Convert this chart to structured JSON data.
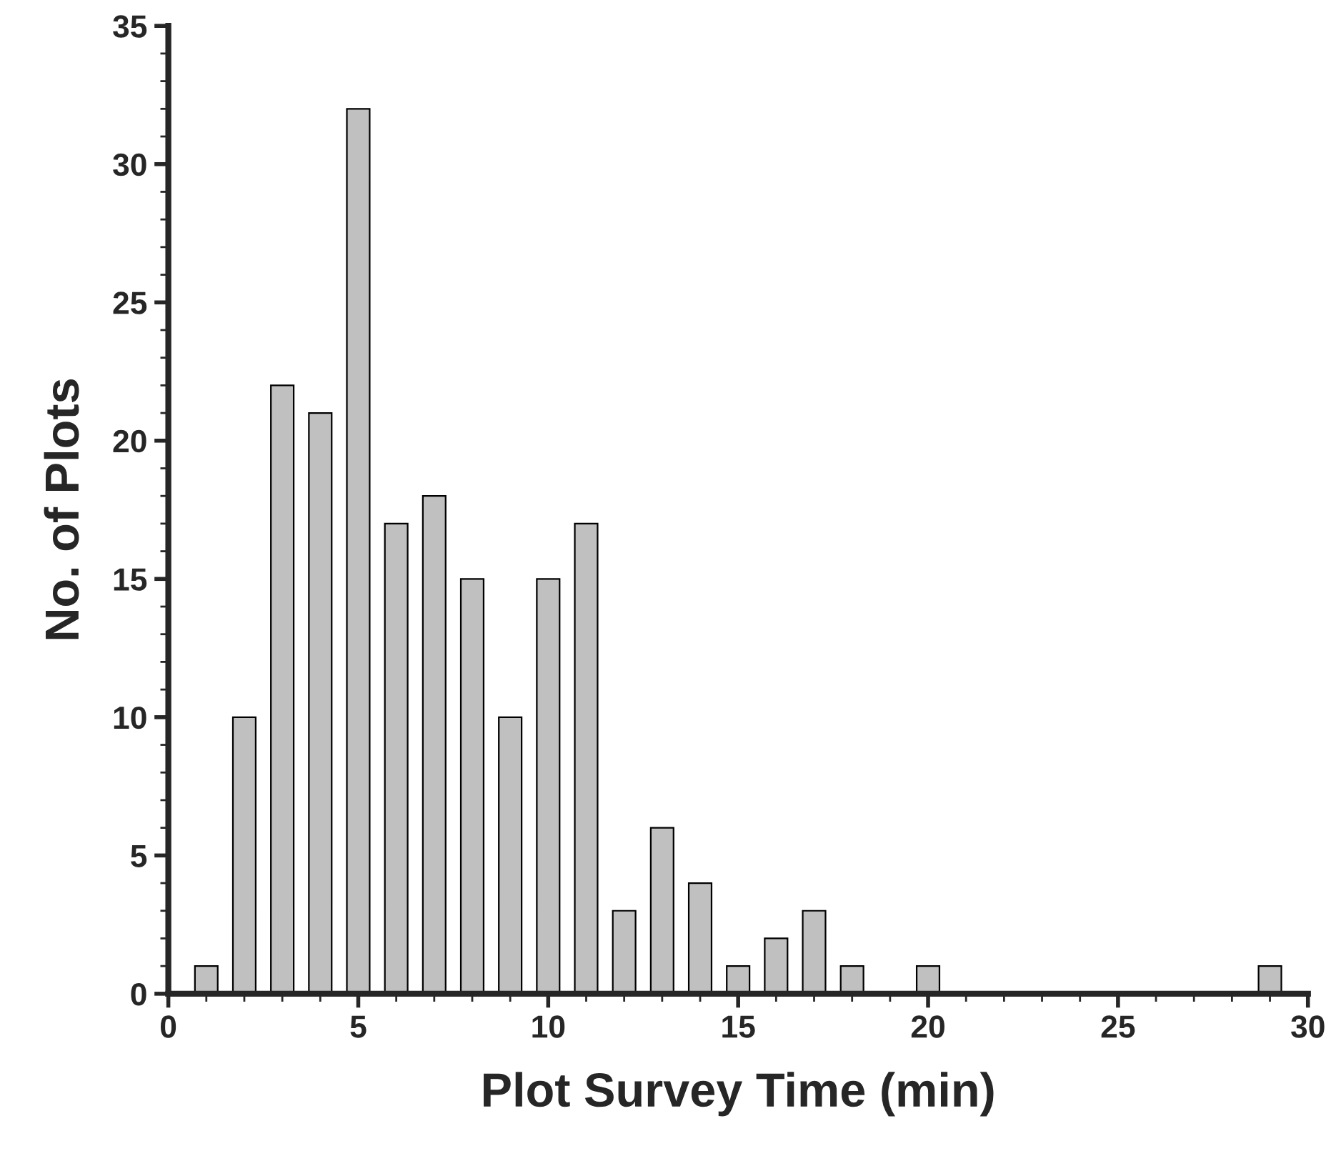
{
  "chart_data": {
    "type": "bar",
    "xlabel": "Plot Survey Time (min)",
    "ylabel": "No. of Plots",
    "x": [
      1,
      2,
      3,
      4,
      5,
      6,
      7,
      8,
      9,
      10,
      11,
      12,
      13,
      14,
      15,
      16,
      17,
      18,
      20,
      29
    ],
    "values": [
      1,
      10,
      22,
      21,
      32,
      17,
      18,
      15,
      10,
      15,
      17,
      3,
      6,
      4,
      1,
      2,
      3,
      1,
      1,
      1
    ],
    "color": "#c0c0c0",
    "xlim": [
      0,
      30
    ],
    "xticks": [
      0,
      5,
      10,
      15,
      20,
      25,
      30
    ],
    "ylim": [
      0,
      35
    ],
    "yticks": [
      0,
      5,
      10,
      15,
      20,
      25,
      30,
      35
    ],
    "grid": false,
    "legend": false
  }
}
